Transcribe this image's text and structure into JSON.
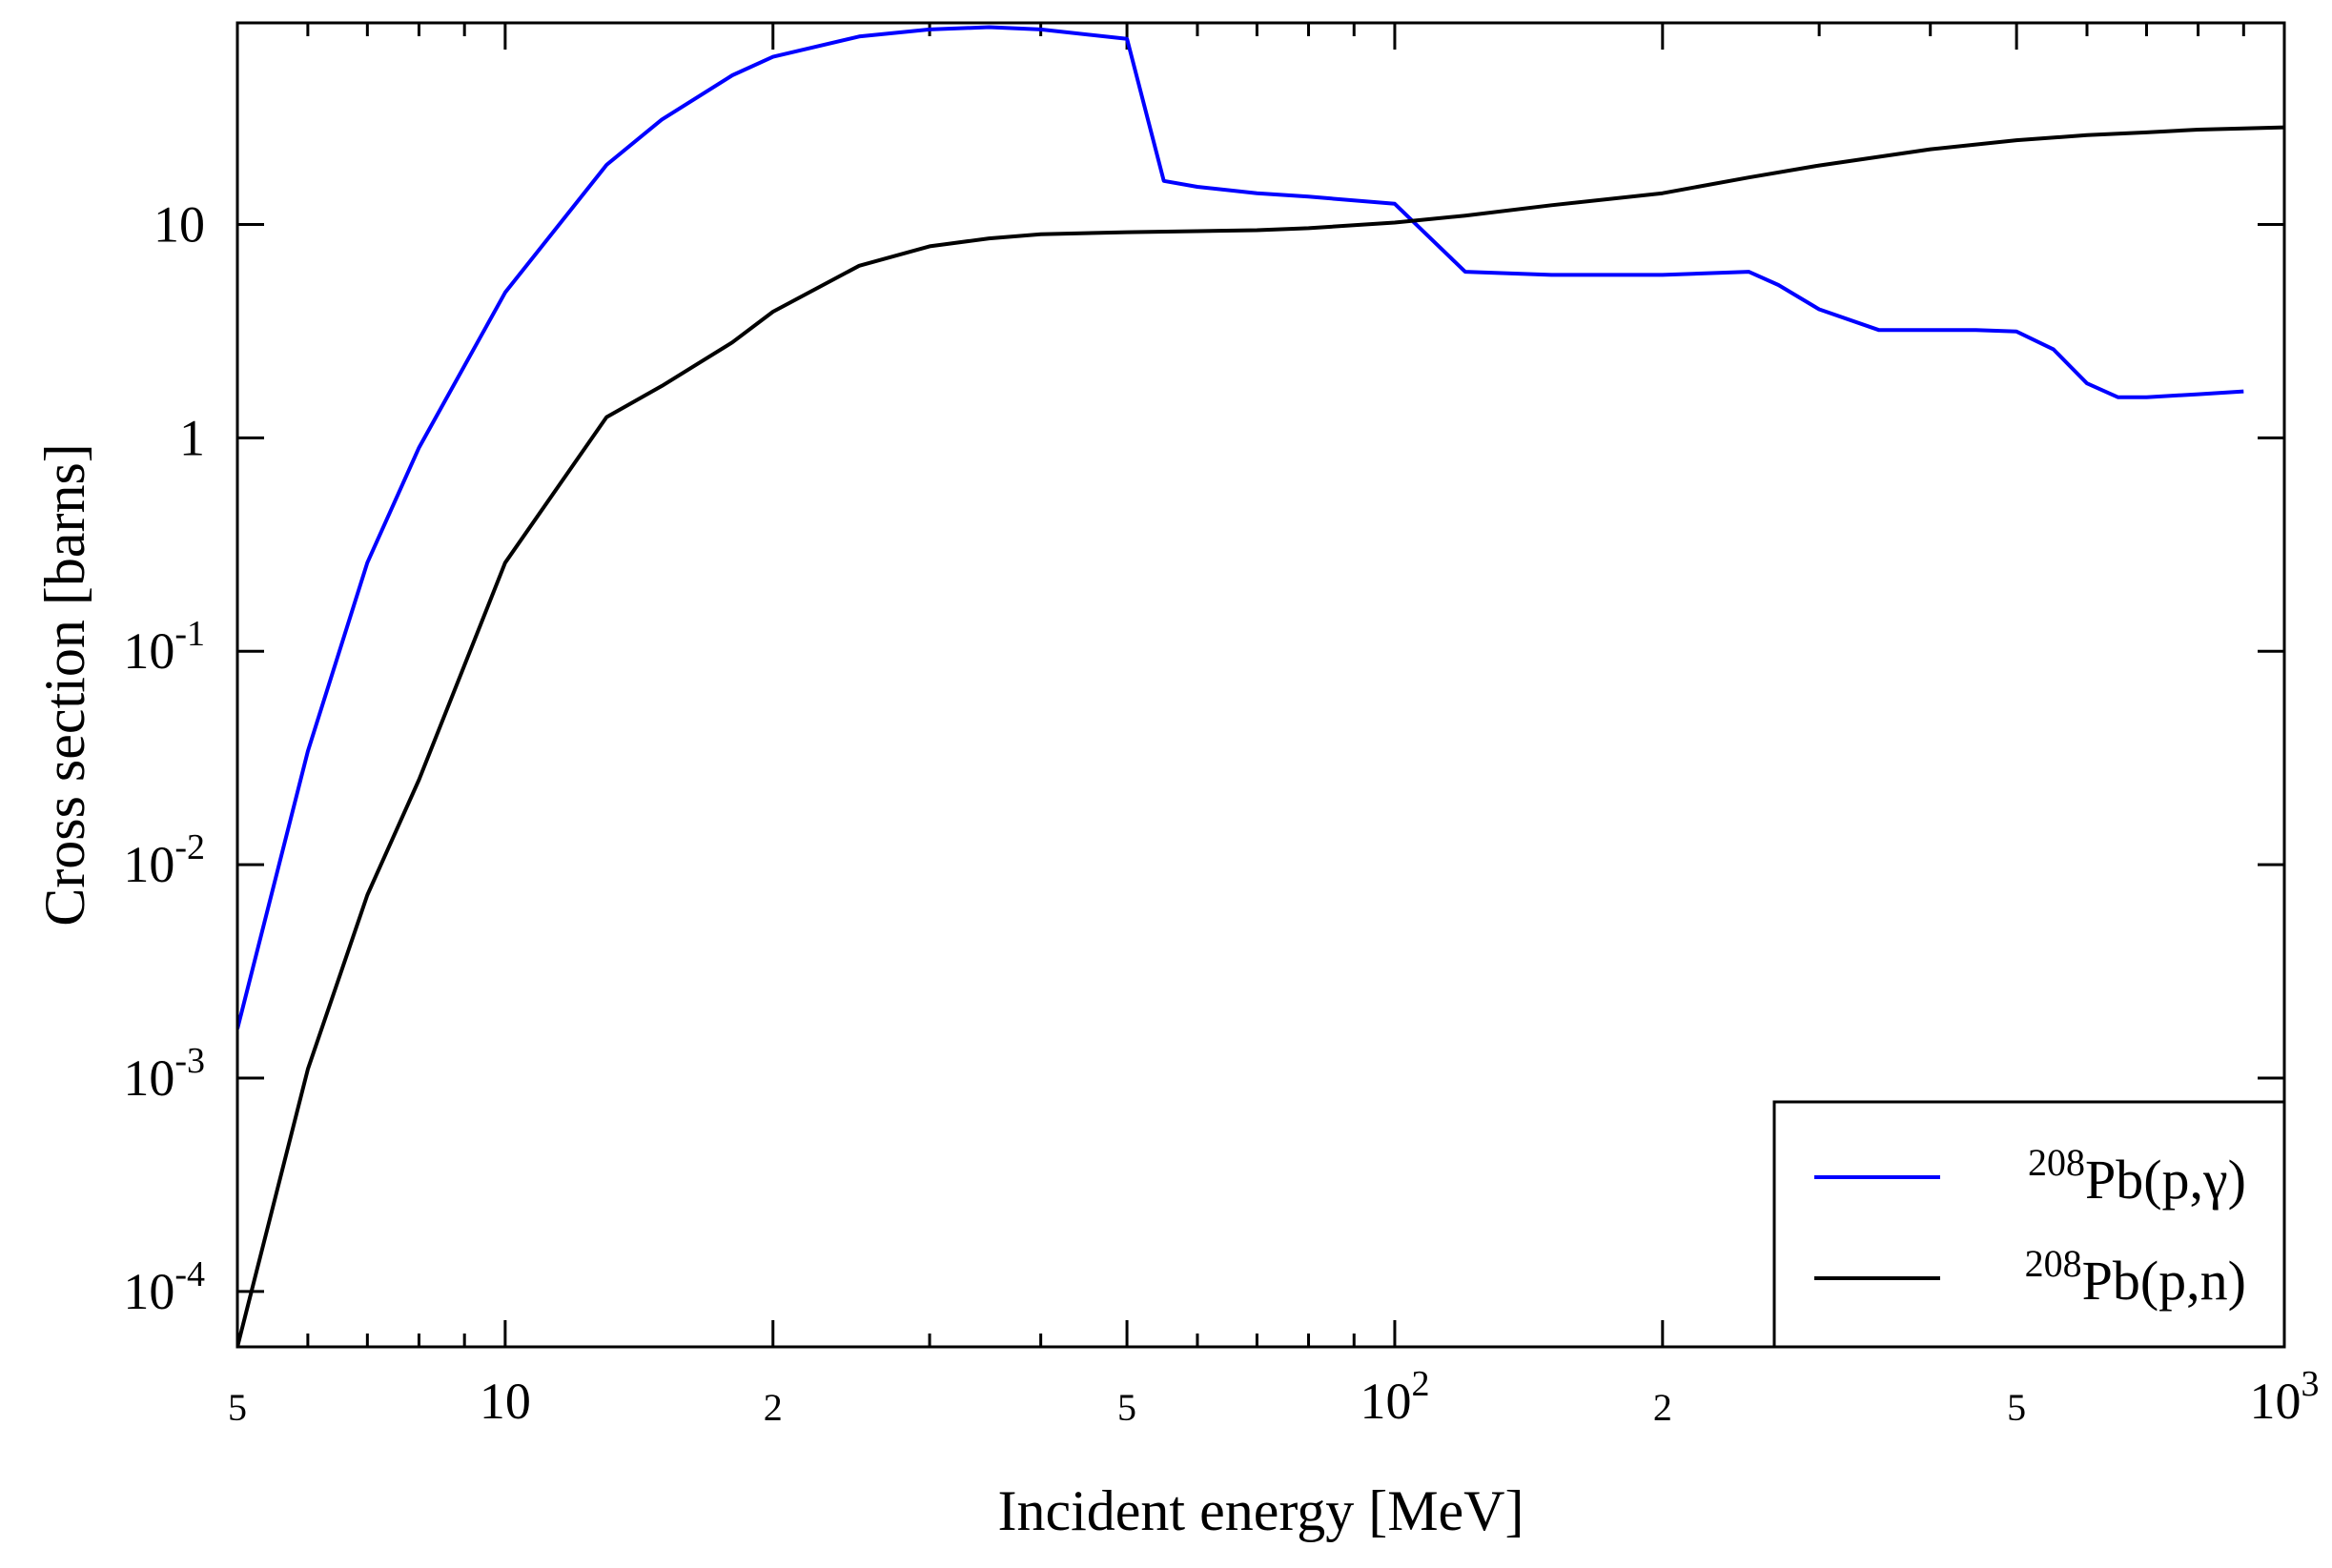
{
  "chart_data": {
    "type": "line",
    "title": "",
    "xlabel": "Incident energy [MeV]",
    "ylabel": "Cross section [barns]",
    "xscale": "log",
    "yscale": "log",
    "xlim": [
      5,
      1000
    ],
    "ylim": [
      5.5e-05,
      88
    ],
    "grid": false,
    "legend_position": "bottom-right",
    "x_ticks": [
      {
        "value": 5,
        "label": "5"
      },
      {
        "value": 10,
        "label": "10"
      },
      {
        "value": 20,
        "label": "2"
      },
      {
        "value": 50,
        "label": "5"
      },
      {
        "value": 100,
        "label": "10",
        "sup": "2"
      },
      {
        "value": 200,
        "label": "2"
      },
      {
        "value": 500,
        "label": "5"
      },
      {
        "value": 1000,
        "label": "10",
        "sup": "3"
      }
    ],
    "y_ticks": [
      {
        "value": 0.0001,
        "label": "10",
        "sup": "-4"
      },
      {
        "value": 0.001,
        "label": "10",
        "sup": "-3"
      },
      {
        "value": 0.01,
        "label": "10",
        "sup": "-2"
      },
      {
        "value": 0.1,
        "label": "10",
        "sup": "-1"
      },
      {
        "value": 1,
        "label": "1"
      },
      {
        "value": 10,
        "label": "10"
      }
    ],
    "series": [
      {
        "name": "208Pb(p,γ)",
        "legend_sup": "208",
        "legend_text": "Pb(p,γ)",
        "color": "#0000ff",
        "x": [
          5,
          6,
          7,
          8,
          10,
          13,
          15,
          18,
          20,
          25,
          30,
          35,
          40,
          50,
          55,
          60,
          70,
          80,
          100,
          120,
          150,
          200,
          250,
          270,
          300,
          350,
          400,
          450,
          500,
          550,
          600,
          650,
          700,
          800,
          900
        ],
        "y": [
          0.0017,
          0.034,
          0.26,
          0.9,
          4.8,
          19,
          31,
          50,
          61,
          76,
          82,
          84,
          82,
          74,
          16,
          15,
          14,
          13.5,
          12.5,
          6,
          5.8,
          5.8,
          6,
          5.2,
          4,
          3.2,
          3.2,
          3.2,
          3.15,
          2.6,
          1.8,
          1.55,
          1.55,
          1.6,
          1.65
        ]
      },
      {
        "name": "208Pb(p,n)",
        "legend_sup": "208",
        "legend_text": "Pb(p,n)",
        "color": "#000000",
        "x": [
          5,
          6,
          7,
          8,
          10,
          13,
          15,
          18,
          20,
          25,
          30,
          35,
          40,
          50,
          60,
          70,
          80,
          100,
          120,
          150,
          200,
          250,
          300,
          400,
          500,
          600,
          700,
          800,
          1000
        ],
        "y": [
          5.5e-05,
          0.0011,
          0.0072,
          0.025,
          0.26,
          1.25,
          1.75,
          2.8,
          3.9,
          6.4,
          7.9,
          8.6,
          9.0,
          9.2,
          9.3,
          9.4,
          9.6,
          10.2,
          11.0,
          12.3,
          14.0,
          16.6,
          18.9,
          22.5,
          24.8,
          26.2,
          27.0,
          27.8,
          28.5
        ]
      }
    ]
  }
}
